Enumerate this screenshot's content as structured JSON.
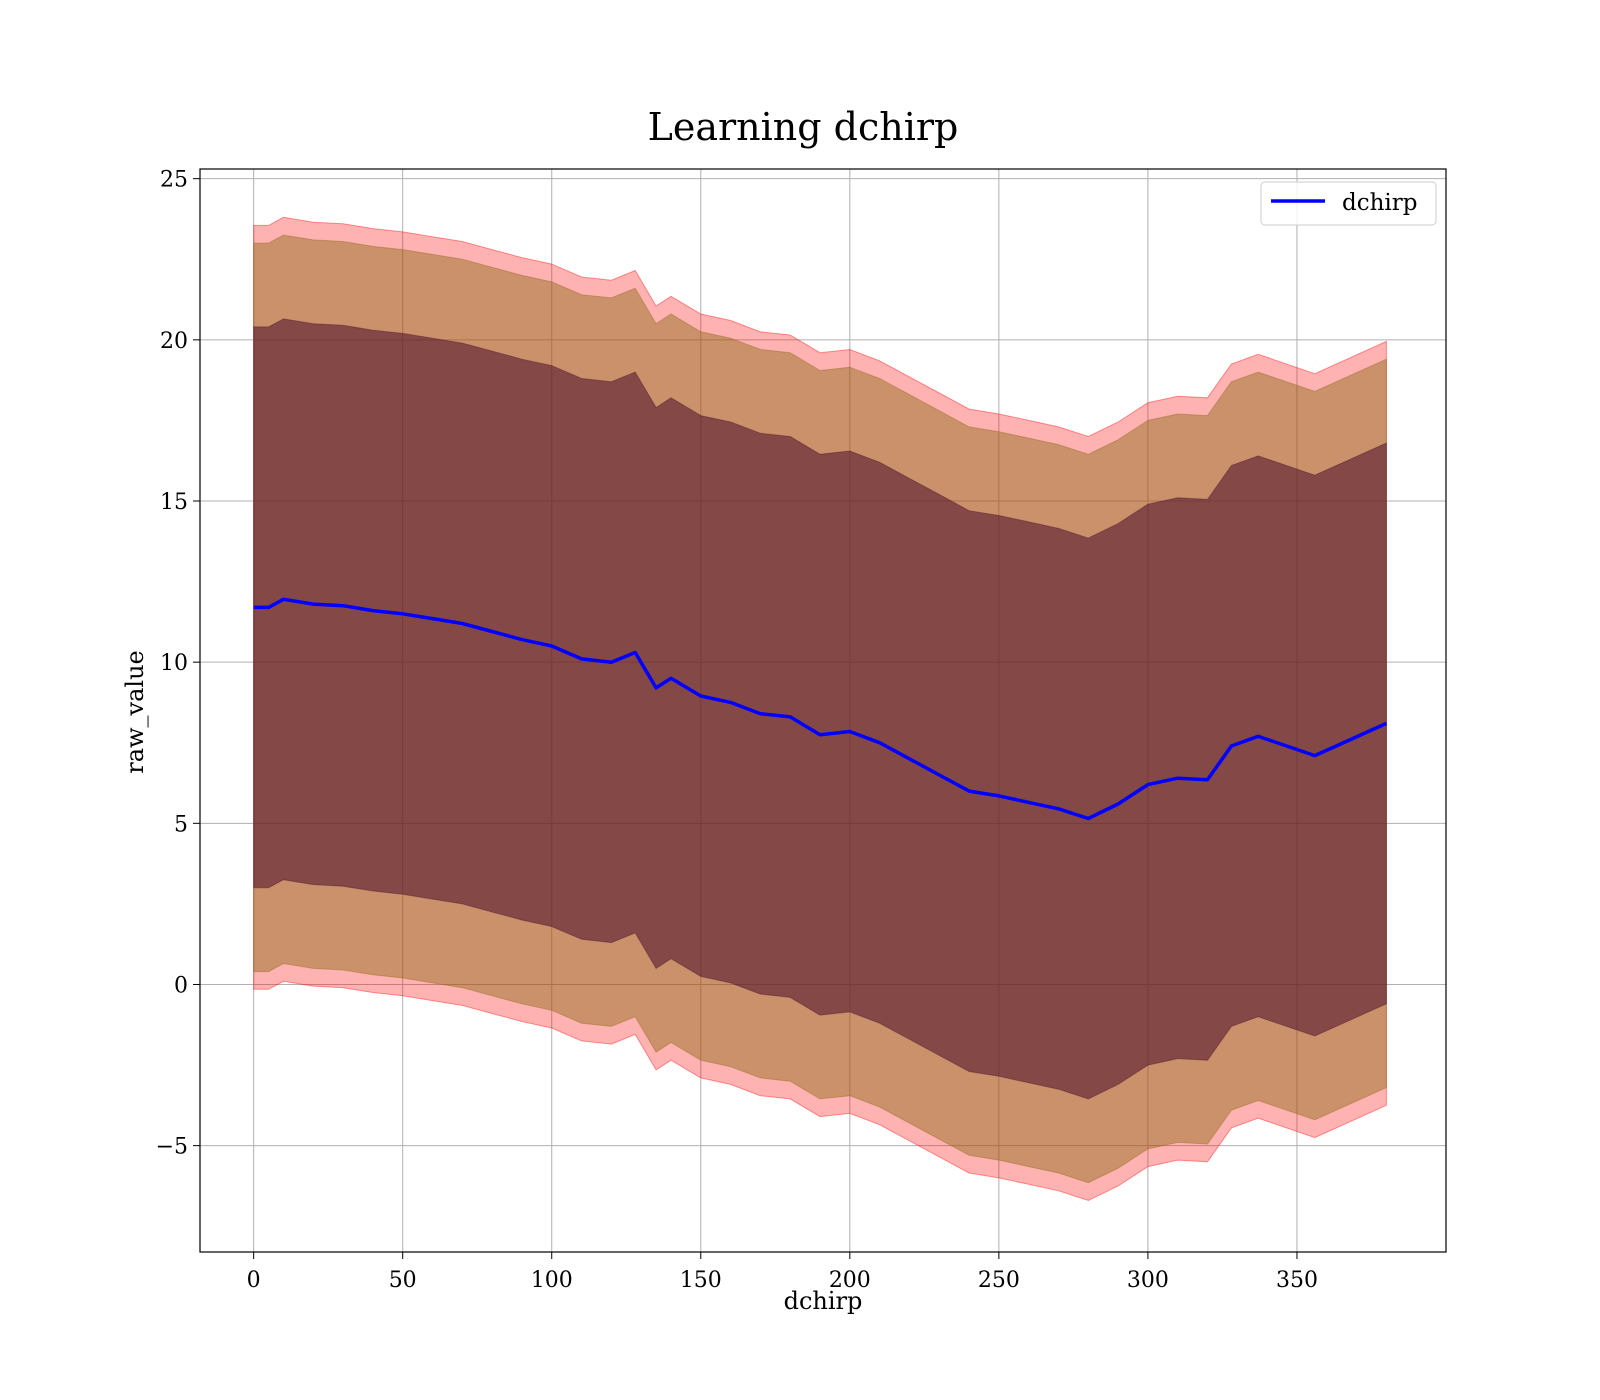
{
  "chart_data": {
    "type": "area",
    "title": "Learning dchirp",
    "xlabel": "dchirp",
    "ylabel": "raw_value",
    "xlim": [
      -18,
      400
    ],
    "ylim": [
      -8.3,
      25.3
    ],
    "xticks": [
      0,
      50,
      100,
      150,
      200,
      250,
      300,
      350
    ],
    "yticks": [
      -5,
      0,
      5,
      10,
      15,
      20,
      25
    ],
    "ytick_labels": [
      "−5",
      "0",
      "5",
      "10",
      "15",
      "20",
      "25"
    ],
    "grid": true,
    "legend": {
      "position": "top-right",
      "entries": [
        "dchirp"
      ]
    },
    "colors": {
      "line": "#0000ff",
      "band_outer": "#ff0000",
      "band_mid": "#8b6914",
      "band_inner": "#4b0f2a"
    },
    "series": [
      {
        "name": "dchirp",
        "x": [
          0,
          5,
          10,
          20,
          30,
          40,
          50,
          60,
          70,
          80,
          90,
          100,
          110,
          120,
          128,
          135,
          140,
          150,
          160,
          170,
          180,
          190,
          200,
          210,
          220,
          230,
          240,
          250,
          260,
          270,
          280,
          290,
          300,
          310,
          320,
          328,
          337,
          356,
          380
        ],
        "values": [
          11.7,
          11.7,
          11.95,
          11.8,
          11.75,
          11.6,
          11.5,
          11.35,
          11.2,
          10.95,
          10.7,
          10.5,
          10.1,
          10.0,
          10.3,
          9.2,
          9.5,
          8.95,
          8.75,
          8.4,
          8.3,
          7.75,
          7.85,
          7.5,
          7.0,
          6.5,
          6.0,
          5.85,
          5.65,
          5.45,
          5.15,
          5.6,
          6.2,
          6.4,
          6.35,
          7.4,
          7.7,
          7.1,
          8.1
        ]
      }
    ],
    "bands": [
      {
        "name": "outer",
        "lower_offset": -11.85,
        "upper_offset": 11.85
      },
      {
        "name": "mid",
        "lower_offset": -11.3,
        "upper_offset": 11.3
      },
      {
        "name": "inner",
        "lower_offset": -8.7,
        "upper_offset": 8.7
      }
    ]
  }
}
